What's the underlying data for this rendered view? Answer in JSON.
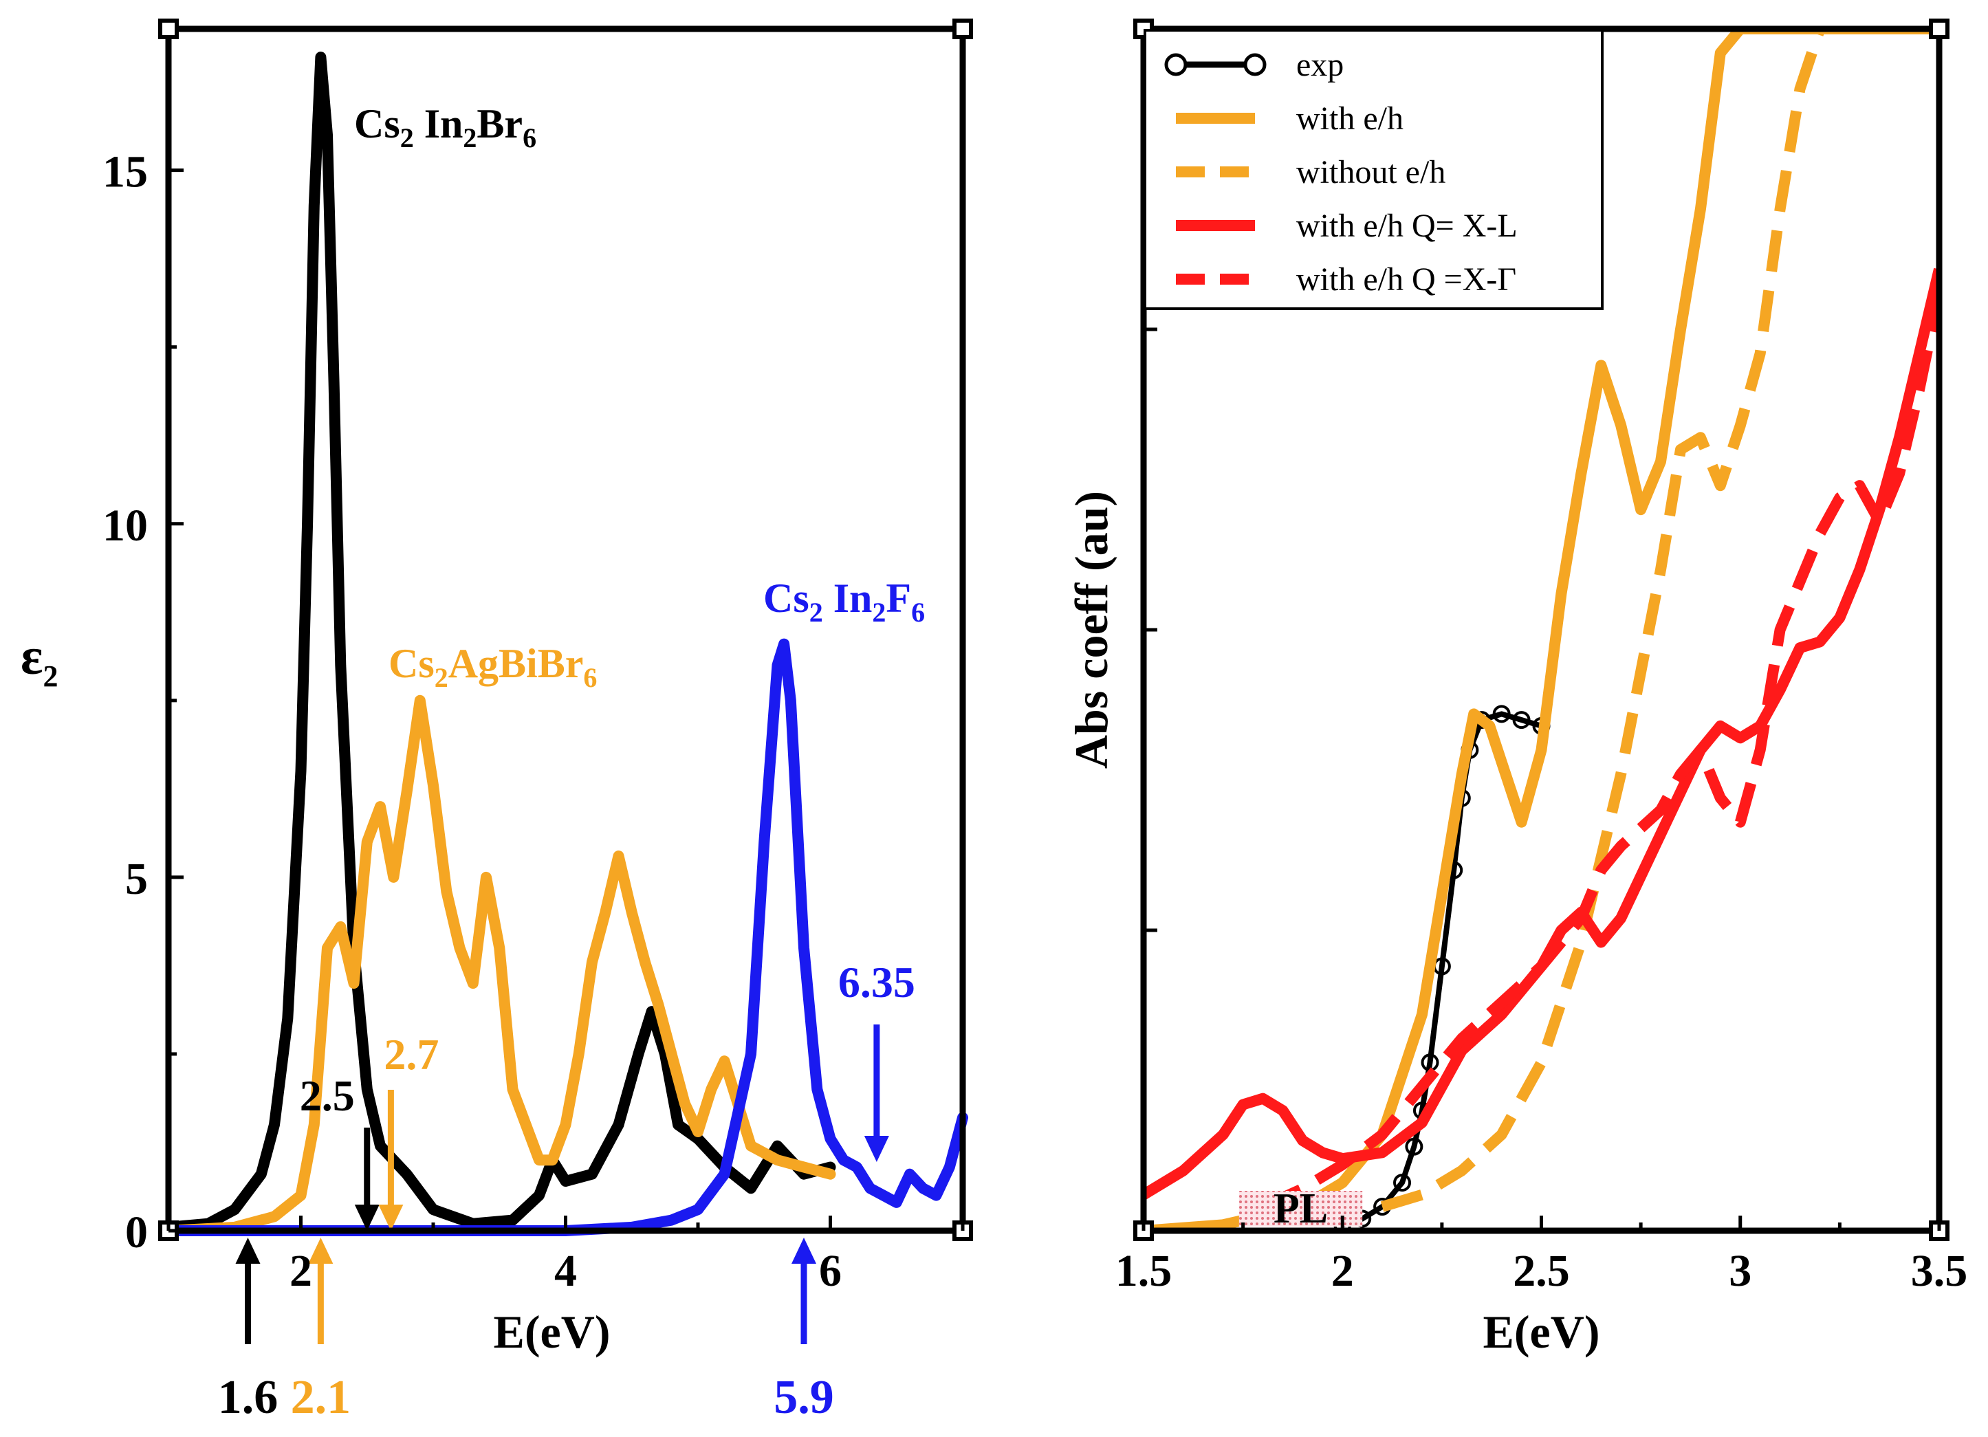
{
  "chart_data": [
    {
      "type": "line",
      "panel": "left",
      "xlabel": "E(eV)",
      "ylabel": "ε",
      "ylabel_sub": "2",
      "xlim": [
        1.0,
        7.0
      ],
      "ylim": [
        0,
        17
      ],
      "xticks": [
        2,
        4,
        6
      ],
      "yticks": [
        0,
        5,
        10,
        15
      ],
      "grid": false,
      "colors": {
        "black": "#000000",
        "orange": "#F5A623",
        "blue": "#1A1AF0"
      },
      "series": [
        {
          "name": "Cs2In2Br6",
          "color": "#000000",
          "x": [
            1.0,
            1.3,
            1.5,
            1.7,
            1.8,
            1.9,
            2.0,
            2.05,
            2.1,
            2.15,
            2.2,
            2.25,
            2.3,
            2.4,
            2.5,
            2.6,
            2.7,
            2.8,
            3.0,
            3.3,
            3.6,
            3.8,
            3.9,
            4.0,
            4.2,
            4.4,
            4.55,
            4.65,
            4.75,
            4.85,
            5.0,
            5.2,
            5.4,
            5.6,
            5.8,
            6.0
          ],
          "values": [
            0.05,
            0.1,
            0.3,
            0.8,
            1.5,
            3.0,
            6.5,
            10.0,
            14.5,
            16.6,
            15.5,
            12.0,
            8.0,
            4.0,
            2.0,
            1.2,
            1.0,
            0.8,
            0.3,
            0.1,
            0.15,
            0.5,
            1.0,
            0.7,
            0.8,
            1.5,
            2.5,
            3.1,
            2.5,
            1.5,
            1.3,
            0.9,
            0.6,
            1.2,
            0.8,
            0.9
          ]
        },
        {
          "name": "Cs2AgBiBr6",
          "color": "#F5A623",
          "x": [
            1.0,
            1.5,
            1.8,
            2.0,
            2.1,
            2.2,
            2.3,
            2.4,
            2.5,
            2.6,
            2.7,
            2.8,
            2.9,
            3.0,
            3.1,
            3.2,
            3.3,
            3.4,
            3.5,
            3.6,
            3.8,
            3.9,
            4.0,
            4.1,
            4.2,
            4.3,
            4.4,
            4.5,
            4.6,
            4.7,
            4.8,
            4.9,
            5.0,
            5.1,
            5.2,
            5.3,
            5.4,
            5.6,
            5.8,
            6.0
          ],
          "values": [
            0.0,
            0.05,
            0.2,
            0.5,
            1.5,
            4.0,
            4.3,
            3.5,
            5.5,
            6.0,
            5.0,
            6.2,
            7.5,
            6.3,
            4.8,
            4.0,
            3.5,
            5.0,
            4.0,
            2.0,
            1.0,
            1.0,
            1.5,
            2.5,
            3.8,
            4.5,
            5.3,
            4.5,
            3.8,
            3.2,
            2.5,
            1.8,
            1.4,
            2.0,
            2.4,
            1.8,
            1.2,
            1.0,
            0.9,
            0.8
          ]
        },
        {
          "name": "Cs2In2F6",
          "color": "#1A1AF0",
          "x": [
            1.0,
            3.0,
            4.0,
            4.5,
            4.8,
            5.0,
            5.2,
            5.4,
            5.5,
            5.6,
            5.65,
            5.7,
            5.8,
            5.9,
            6.0,
            6.1,
            6.2,
            6.3,
            6.4,
            6.5,
            6.6,
            6.7,
            6.8,
            6.9,
            7.0
          ],
          "values": [
            0.0,
            0.0,
            0.0,
            0.05,
            0.15,
            0.3,
            0.8,
            2.5,
            5.5,
            8.0,
            8.3,
            7.5,
            4.0,
            2.0,
            1.3,
            1.0,
            0.9,
            0.6,
            0.5,
            0.4,
            0.8,
            0.6,
            0.5,
            0.9,
            1.6
          ]
        }
      ],
      "annotations": [
        {
          "label": "Cs",
          "sub": "2",
          "label2": " In",
          "sub2": "2",
          "label3": "Br",
          "sub3": "6",
          "color": "#000000",
          "x": 2.4,
          "y": 15.9
        },
        {
          "label": "Cs",
          "sub": "2",
          "label2": "AgBiBr",
          "sub2": "6",
          "label3": "",
          "sub3": "",
          "color": "#F5A623",
          "x": 2.7,
          "y": 7.9
        },
        {
          "label": "Cs",
          "sub": "2",
          "label2": " In",
          "sub2": "2",
          "label3": "F",
          "sub3": "6",
          "color": "#1A1AF0",
          "x": 5.45,
          "y": 8.7
        }
      ],
      "arrows": [
        {
          "text": "1.6",
          "x": 1.6,
          "direction": "up",
          "color": "#000000"
        },
        {
          "text": "2.1",
          "x": 2.15,
          "direction": "up",
          "color": "#F5A623"
        },
        {
          "text": "5.9",
          "x": 5.8,
          "direction": "up",
          "color": "#1A1AF0"
        },
        {
          "text": "2.5",
          "x": 2.5,
          "direction": "down",
          "color": "#000000"
        },
        {
          "text": "2.7",
          "x": 2.68,
          "direction": "down",
          "color": "#F5A623"
        },
        {
          "text": "6.35",
          "x": 6.35,
          "direction": "down",
          "color": "#1A1AF0"
        }
      ]
    },
    {
      "type": "line",
      "panel": "right",
      "xlabel": "E(eV)",
      "ylabel": "Abs coeff (au)",
      "xlim": [
        1.5,
        3.5
      ],
      "ylim": [
        0,
        100
      ],
      "xticks": [
        1.5,
        2,
        2.5,
        3,
        3.5
      ],
      "xtick_labels": [
        "1.5",
        "2",
        "2.5",
        "3",
        "3.5"
      ],
      "grid": false,
      "legend": "top-left",
      "series": [
        {
          "name": "exp",
          "style": "markers-line",
          "color": "#000000",
          "x": [
            2.0,
            2.05,
            2.1,
            2.15,
            2.18,
            2.2,
            2.22,
            2.25,
            2.28,
            2.3,
            2.32,
            2.35,
            2.4,
            2.45,
            2.5
          ],
          "values": [
            0.5,
            1.0,
            2.0,
            4.0,
            7.0,
            10.0,
            14.0,
            22.0,
            30.0,
            36.0,
            40.0,
            42.5,
            43.0,
            42.5,
            42.0
          ]
        },
        {
          "name": "with e/h",
          "style": "solid",
          "color": "#F5A623",
          "x": [
            1.5,
            1.7,
            1.9,
            2.0,
            2.1,
            2.2,
            2.25,
            2.3,
            2.33,
            2.37,
            2.42,
            2.45,
            2.5,
            2.55,
            2.6,
            2.65,
            2.7,
            2.75,
            2.8,
            2.85,
            2.9,
            2.95,
            3.0,
            3.05,
            3.1,
            3.15,
            3.2,
            3.25,
            3.3,
            3.35,
            3.4,
            3.45,
            3.5
          ],
          "values": [
            0.0,
            0.5,
            2.0,
            4.0,
            8.0,
            18.0,
            28.0,
            38.0,
            43.0,
            42.0,
            37.0,
            34.0,
            40.0,
            53.0,
            63.0,
            72.0,
            67.0,
            60.0,
            64.0,
            75.0,
            85.0,
            98.0,
            100.0,
            100.0,
            100.0,
            100.0,
            100.0,
            100.0,
            100.0,
            100.0,
            100.0,
            100.0,
            100.0
          ]
        },
        {
          "name": "without e/h",
          "style": "dashed",
          "color": "#F5A623",
          "x": [
            2.1,
            2.2,
            2.3,
            2.4,
            2.5,
            2.6,
            2.7,
            2.8,
            2.85,
            2.9,
            2.95,
            3.0,
            3.05,
            3.1,
            3.15,
            3.2
          ],
          "values": [
            2.0,
            3.0,
            5.0,
            8.0,
            14.0,
            24.0,
            38.0,
            55.0,
            65.0,
            66.0,
            62.0,
            67.0,
            73.0,
            85.0,
            95.0,
            100.0
          ]
        },
        {
          "name": "with e/h Q= X-L",
          "style": "solid",
          "color": "#FF1A1A",
          "x": [
            1.5,
            1.6,
            1.7,
            1.75,
            1.8,
            1.85,
            1.9,
            1.95,
            2.0,
            2.1,
            2.2,
            2.3,
            2.4,
            2.5,
            2.55,
            2.6,
            2.65,
            2.7,
            2.8,
            2.9,
            2.95,
            3.0,
            3.05,
            3.1,
            3.15,
            3.2,
            3.25,
            3.3,
            3.35,
            3.4,
            3.45,
            3.5
          ],
          "values": [
            3.0,
            5.0,
            8.0,
            10.5,
            11.0,
            10.0,
            7.5,
            6.5,
            6.0,
            6.5,
            9.0,
            15.0,
            18.0,
            22.0,
            25.0,
            26.5,
            24.0,
            26.0,
            33.0,
            40.0,
            42.0,
            41.0,
            42.0,
            45.0,
            48.5,
            49.0,
            51.0,
            55.0,
            60.0,
            66.0,
            73.0,
            80.0
          ]
        },
        {
          "name": "with e/h Q =X-Γ",
          "style": "dashed",
          "color": "#FF1A1A",
          "x": [
            1.8,
            1.9,
            2.0,
            2.1,
            2.2,
            2.3,
            2.4,
            2.5,
            2.6,
            2.65,
            2.7,
            2.75,
            2.8,
            2.85,
            2.9,
            2.95,
            3.0,
            3.05,
            3.1,
            3.15,
            3.2,
            3.25,
            3.3,
            3.35,
            3.4,
            3.45,
            3.5
          ],
          "values": [
            2.0,
            3.5,
            5.5,
            8.0,
            12.0,
            16.0,
            19.0,
            22.0,
            26.0,
            30.0,
            32.0,
            33.5,
            35.0,
            38.0,
            40.0,
            36.0,
            34.0,
            40.0,
            50.0,
            54.0,
            58.0,
            61.0,
            62.0,
            59.0,
            63.0,
            70.0,
            78.0
          ]
        }
      ],
      "annotations": [
        {
          "label": "PL",
          "x": 1.85,
          "y": 1.2,
          "color": "#000000"
        }
      ]
    }
  ]
}
